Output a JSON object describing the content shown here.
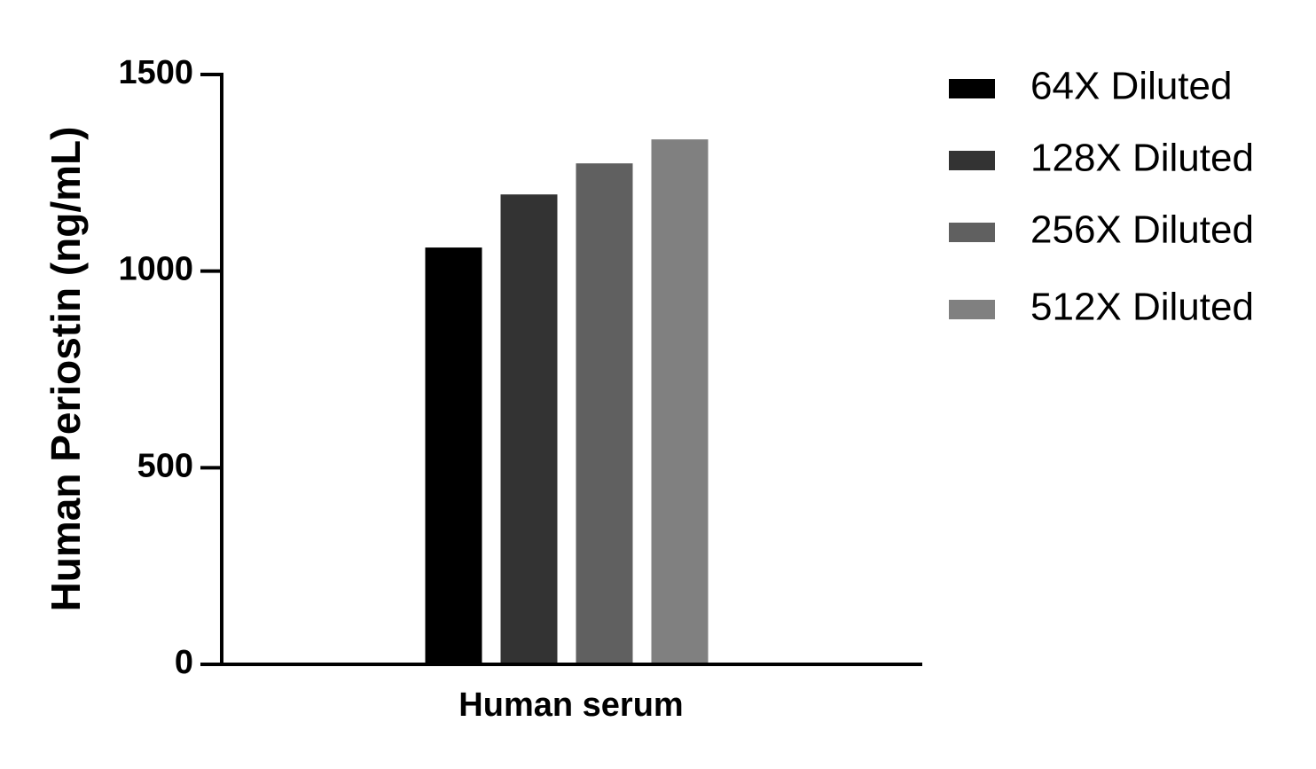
{
  "chart_data": {
    "type": "bar",
    "y_label": "Human Periostin (ng/mL)",
    "x_label": "Human serum",
    "categories": [
      "Human serum"
    ],
    "series": [
      {
        "name": "64X Diluted",
        "color": "#000000",
        "values": [
          1060
        ]
      },
      {
        "name": "128X Diluted",
        "color": "#333333",
        "values": [
          1195
        ]
      },
      {
        "name": "256X Diluted",
        "color": "#606060",
        "values": [
          1274
        ]
      },
      {
        "name": "512X Diluted",
        "color": "#808080",
        "values": [
          1335
        ]
      }
    ],
    "ylim": [
      0,
      1500
    ],
    "yticks": [
      0,
      500,
      1000,
      1500
    ],
    "grid": false,
    "legend": "right"
  }
}
